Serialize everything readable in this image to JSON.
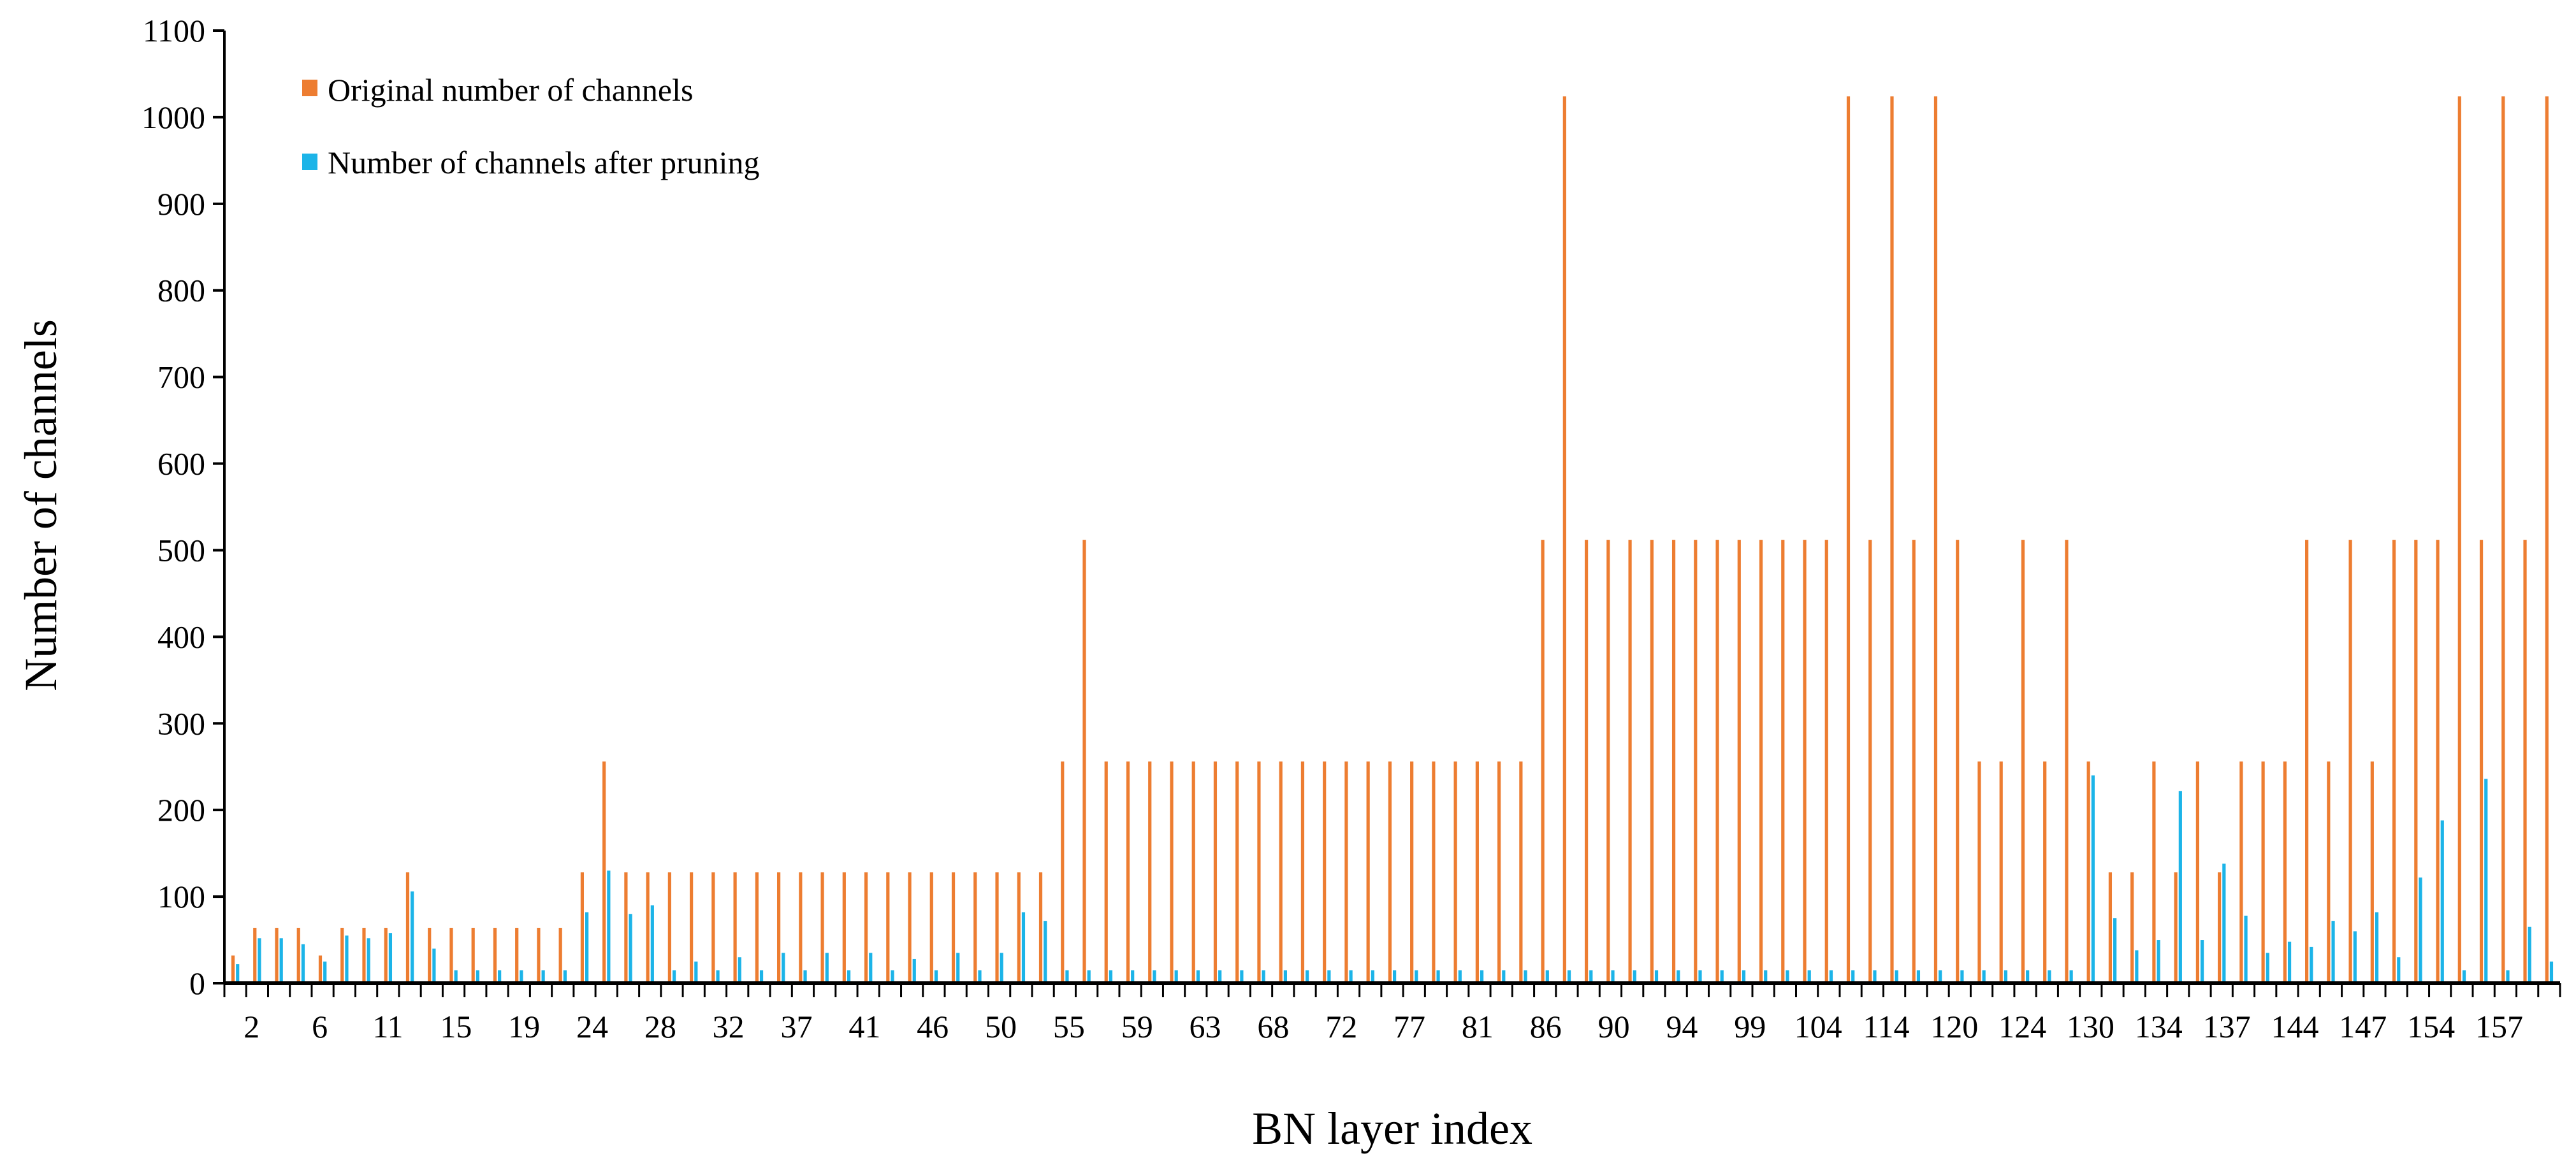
{
  "chart_data": {
    "type": "bar",
    "xlabel": "BN layer index",
    "ylabel": "Number of channels",
    "ylim": [
      0,
      1100
    ],
    "yticks": [
      0,
      100,
      200,
      300,
      400,
      500,
      600,
      700,
      800,
      900,
      1000,
      1100
    ],
    "grid": false,
    "legend_position": "top-left",
    "x_tick_labels": [
      "2",
      "6",
      "11",
      "15",
      "19",
      "24",
      "28",
      "32",
      "37",
      "41",
      "46",
      "50",
      "55",
      "59",
      "63",
      "68",
      "72",
      "77",
      "81",
      "86",
      "90",
      "94",
      "99",
      "104",
      "114",
      "120",
      "124",
      "130",
      "134",
      "137",
      "144",
      "147",
      "154",
      "157"
    ],
    "colors": {
      "original": "#ED7D31",
      "pruned": "#1CB4E8"
    },
    "series": [
      {
        "name": "Original number of channels",
        "values": [
          32,
          64,
          64,
          64,
          32,
          64,
          64,
          64,
          128,
          64,
          64,
          64,
          64,
          64,
          64,
          64,
          128,
          256,
          128,
          128,
          128,
          128,
          128,
          128,
          128,
          128,
          128,
          128,
          128,
          128,
          128,
          128,
          128,
          128,
          128,
          128,
          128,
          128,
          256,
          512,
          256,
          256,
          256,
          256,
          256,
          256,
          256,
          256,
          256,
          256,
          256,
          256,
          256,
          256,
          256,
          256,
          256,
          256,
          256,
          256,
          512,
          1024,
          512,
          512,
          512,
          512,
          512,
          512,
          512,
          512,
          512,
          512,
          512,
          512,
          1024,
          512,
          1024,
          512,
          1024,
          512,
          256,
          256,
          512,
          256,
          512,
          256,
          128,
          128,
          256,
          128,
          256,
          128,
          256,
          256,
          256,
          512,
          256,
          512,
          256,
          512,
          512,
          512,
          1024,
          512,
          1024,
          512,
          1024
        ]
      },
      {
        "name": "Number of channels after pruning",
        "values": [
          22,
          52,
          52,
          45,
          25,
          55,
          52,
          58,
          106,
          40,
          15,
          15,
          15,
          15,
          15,
          15,
          82,
          130,
          80,
          90,
          15,
          25,
          15,
          30,
          15,
          35,
          15,
          35,
          15,
          35,
          15,
          28,
          15,
          35,
          15,
          35,
          82,
          72,
          15,
          15,
          15,
          15,
          15,
          15,
          15,
          15,
          15,
          15,
          15,
          15,
          15,
          15,
          15,
          15,
          15,
          15,
          15,
          15,
          15,
          15,
          15,
          15,
          15,
          15,
          15,
          15,
          15,
          15,
          15,
          15,
          15,
          15,
          15,
          15,
          15,
          15,
          15,
          15,
          15,
          15,
          15,
          15,
          15,
          15,
          15,
          240,
          75,
          38,
          50,
          222,
          50,
          138,
          78,
          35,
          48,
          42,
          72,
          60,
          82,
          30,
          122,
          188,
          15,
          236,
          15,
          65,
          25
        ]
      }
    ]
  }
}
